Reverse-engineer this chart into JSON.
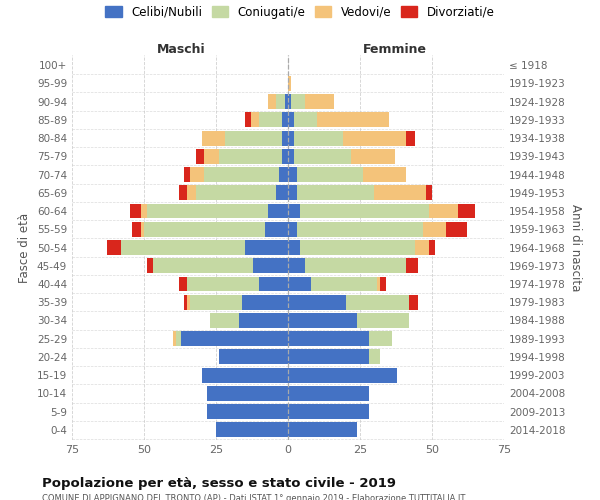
{
  "age_groups": [
    "0-4",
    "5-9",
    "10-14",
    "15-19",
    "20-24",
    "25-29",
    "30-34",
    "35-39",
    "40-44",
    "45-49",
    "50-54",
    "55-59",
    "60-64",
    "65-69",
    "70-74",
    "75-79",
    "80-84",
    "85-89",
    "90-94",
    "95-99",
    "100+"
  ],
  "birth_years": [
    "2014-2018",
    "2009-2013",
    "2004-2008",
    "1999-2003",
    "1994-1998",
    "1989-1993",
    "1984-1988",
    "1979-1983",
    "1974-1978",
    "1969-1973",
    "1964-1968",
    "1959-1963",
    "1954-1958",
    "1949-1953",
    "1944-1948",
    "1939-1943",
    "1934-1938",
    "1929-1933",
    "1924-1928",
    "1919-1923",
    "≤ 1918"
  ],
  "maschi": {
    "celibi": [
      25,
      28,
      28,
      30,
      24,
      37,
      17,
      16,
      10,
      12,
      15,
      8,
      7,
      4,
      3,
      2,
      2,
      2,
      1,
      0,
      0
    ],
    "coniugati": [
      0,
      0,
      0,
      0,
      0,
      2,
      10,
      18,
      25,
      35,
      43,
      42,
      42,
      28,
      26,
      22,
      20,
      8,
      3,
      0,
      0
    ],
    "vedovi": [
      0,
      0,
      0,
      0,
      0,
      1,
      0,
      1,
      0,
      0,
      0,
      1,
      2,
      3,
      5,
      5,
      8,
      3,
      3,
      0,
      0
    ],
    "divorziati": [
      0,
      0,
      0,
      0,
      0,
      0,
      0,
      1,
      3,
      2,
      5,
      3,
      4,
      3,
      2,
      3,
      0,
      2,
      0,
      0,
      0
    ]
  },
  "femmine": {
    "nubili": [
      24,
      28,
      28,
      38,
      28,
      28,
      24,
      20,
      8,
      6,
      4,
      3,
      4,
      3,
      3,
      2,
      2,
      2,
      1,
      0,
      0
    ],
    "coniugate": [
      0,
      0,
      0,
      0,
      4,
      8,
      18,
      22,
      23,
      35,
      40,
      44,
      45,
      27,
      23,
      20,
      17,
      8,
      5,
      0,
      0
    ],
    "vedove": [
      0,
      0,
      0,
      0,
      0,
      0,
      0,
      0,
      1,
      0,
      5,
      8,
      10,
      18,
      15,
      15,
      22,
      25,
      10,
      1,
      0
    ],
    "divorziate": [
      0,
      0,
      0,
      0,
      0,
      0,
      0,
      3,
      2,
      4,
      2,
      7,
      6,
      2,
      0,
      0,
      3,
      0,
      0,
      0,
      0
    ]
  },
  "colors": {
    "celibi": "#4472C4",
    "coniugati": "#C5D9A3",
    "vedovi": "#F4C37A",
    "divorziati": "#D9261C"
  },
  "title": "Popolazione per età, sesso e stato civile - 2019",
  "subtitle": "COMUNE DI APPIGNANO DEL TRONTO (AP) - Dati ISTAT 1° gennaio 2019 - Elaborazione TUTTITALIA.IT",
  "xlabel_left": "Maschi",
  "xlabel_right": "Femmine",
  "ylabel_left": "Fasce di età",
  "ylabel_right": "Anni di nascita",
  "xlim": 75,
  "legend_labels": [
    "Celibi/Nubili",
    "Coniugati/e",
    "Vedovi/e",
    "Divorziati/e"
  ],
  "bg_color": "#FFFFFF",
  "grid_color": "#CCCCCC"
}
